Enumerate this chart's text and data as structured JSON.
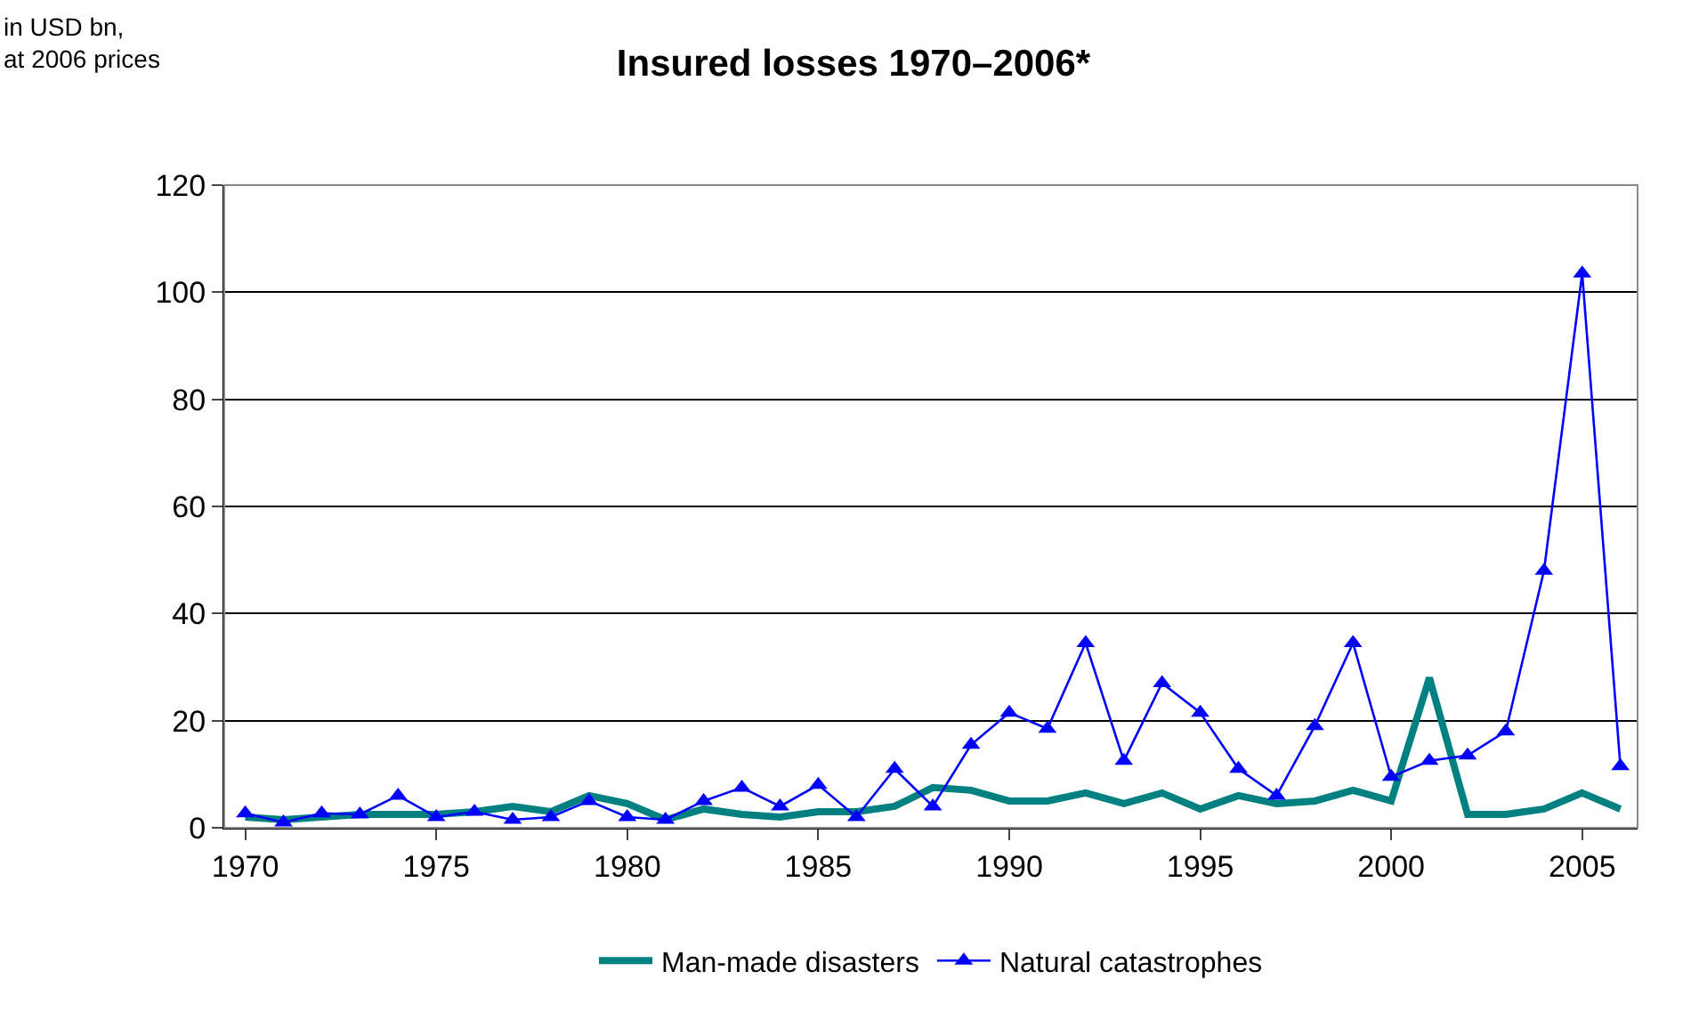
{
  "chart_data": {
    "type": "line",
    "title": "Insured losses 1970–2006*",
    "ylabel": "in USD bn,\nat 2006 prices",
    "x": [
      1970,
      1971,
      1972,
      1973,
      1974,
      1975,
      1976,
      1977,
      1978,
      1979,
      1980,
      1981,
      1982,
      1983,
      1984,
      1985,
      1986,
      1987,
      1988,
      1989,
      1990,
      1991,
      1992,
      1993,
      1994,
      1995,
      1996,
      1997,
      1998,
      1999,
      2000,
      2001,
      2002,
      2003,
      2004,
      2005,
      2006
    ],
    "series": [
      {
        "name": "Man-made disasters",
        "color": "#008080",
        "marker": "none",
        "values": [
          2,
          1.5,
          2,
          2.5,
          2.5,
          2.5,
          3,
          4,
          3,
          6,
          4.5,
          1.5,
          3.5,
          2.5,
          2,
          3,
          3,
          4,
          7.5,
          7,
          5,
          5,
          6.5,
          4.5,
          6.5,
          3.5,
          6,
          4.5,
          5,
          7,
          5,
          28,
          2.5,
          2.5,
          3.5,
          6.5,
          3.5
        ]
      },
      {
        "name": "Natural catastrophes",
        "color": "#0000ff",
        "marker": "triangle",
        "values": [
          2.7,
          1,
          2.7,
          2.5,
          6,
          2,
          3,
          1.5,
          2,
          5,
          2,
          1.5,
          5,
          7.5,
          4,
          8,
          2,
          11,
          4,
          15.5,
          21.5,
          18.5,
          34.5,
          12.5,
          27,
          21.5,
          11,
          6,
          19,
          34.5,
          9.5,
          12.5,
          13.5,
          18,
          48,
          103.5,
          11.5
        ]
      }
    ],
    "xlim": [
      1969.45,
      2006.45
    ],
    "xticks": [
      1970,
      1975,
      1980,
      1985,
      1990,
      1995,
      2000,
      2005
    ],
    "ylim": [
      0,
      120
    ],
    "yticks": [
      0,
      20,
      40,
      60,
      80,
      100,
      120
    ],
    "grid": "y",
    "legend": "bottom"
  }
}
